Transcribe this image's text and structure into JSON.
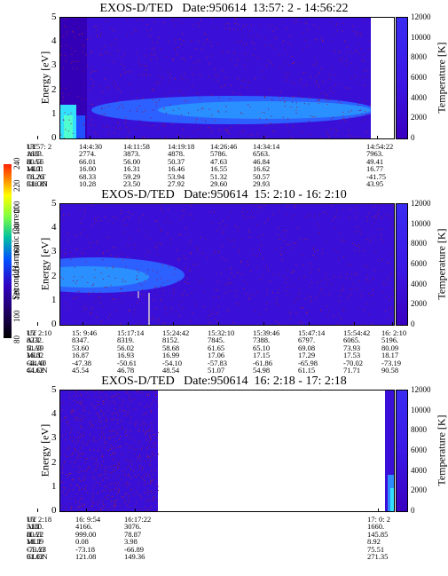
{
  "colorbar_left": {
    "label": "Second Harmonic Current",
    "ticks": [
      "80",
      "100",
      "120",
      "140",
      "160",
      "180",
      "200",
      "220",
      "240"
    ]
  },
  "panels": [
    {
      "title": "EXOS-D/TED   Date:950614  13:57: 2 - 14:56:22",
      "ylabel": "Energy [eV]",
      "rlabel": "Temperature [K]",
      "yticks": [
        "5",
        "4",
        "3",
        "2",
        "1",
        "0"
      ],
      "rticks": [
        "12000",
        "10000",
        "8000",
        "6000",
        "4000",
        "2000",
        "0"
      ],
      "orbit_labels": [
        "UT",
        "ALT",
        "ILAT",
        "MLT",
        "GLAT",
        "GLON"
      ],
      "orbit_cols": [
        [
          "13:57: 2",
          "1683.",
          "80.56",
          "14.01",
          "76.26",
          "316.83"
        ],
        [
          "14:4:30",
          "2774.",
          "66.01",
          "16.00",
          "68.33",
          "10.28"
        ],
        [
          "14:11:58",
          "3873.",
          "56.00",
          "16.31",
          "59.29",
          "23.50"
        ],
        [
          "14:19:18",
          "4878.",
          "50.37",
          "16.46",
          "53.94",
          "27.92"
        ],
        [
          "14:26:46",
          "5786.",
          "47.63",
          "16.55",
          "51.32",
          "29.60"
        ],
        [
          "14:34:14",
          "6563.",
          "46.84",
          "16.62",
          "50.57",
          "29.93"
        ],
        [
          "14:54:22",
          "7963.",
          "49.41",
          "16.77",
          "-41.75",
          "43.95"
        ]
      ]
    },
    {
      "title": "EXOS-D/TED   Date:950614  15: 2:10 - 16: 2:10",
      "ylabel": "Energy [eV]",
      "rlabel": "Temperature [K]",
      "yticks": [
        "5",
        "4",
        "3",
        "2",
        "1",
        "0"
      ],
      "rticks": [
        "12000",
        "10000",
        "8000",
        "6000",
        "4000",
        "2000",
        "0"
      ],
      "orbit_labels": [
        "UT",
        "ALT",
        "ILAT",
        "MLT",
        "GLAT",
        "GLON"
      ],
      "orbit_cols": [
        [
          "15: 2:10",
          "8232.",
          "51.39",
          "16.82",
          "-44.40",
          "44.62"
        ],
        [
          "15: 9:46",
          "8347.",
          "53.60",
          "16.87",
          "-47.38",
          "45.54"
        ],
        [
          "15:17:14",
          "8319.",
          "56.02",
          "16.93",
          "-50.61",
          "46.78"
        ],
        [
          "15:24:42",
          "8152.",
          "58.68",
          "16.99",
          "-54.10",
          "48.54"
        ],
        [
          "15:32:10",
          "7845.",
          "61.65",
          "17.06",
          "-57.83",
          "51.07"
        ],
        [
          "15:39:46",
          "7388.",
          "65.10",
          "17.15",
          "-61.86",
          "54.98"
        ],
        [
          "15:47:14",
          "6797.",
          "69.08",
          "17.29",
          "-65.98",
          "61.15"
        ],
        [
          "15:54:42",
          "6065.",
          "73.93",
          "17.53",
          "-70.02",
          "71.71"
        ],
        [
          "16: 2:10",
          "5196.",
          "80.09",
          "18.17",
          "-73.19",
          "90.58"
        ]
      ]
    },
    {
      "title": "EXOS-D/TED   Date:950614  16: 2:18 - 17: 2:18",
      "ylabel": "Energy [eV]",
      "rlabel": "Temperature [K]",
      "yticks": [
        "5",
        "4",
        "3",
        "2",
        "1",
        "0"
      ],
      "rticks": [
        "12000",
        "10000",
        "8000",
        "6000",
        "4000",
        "2000",
        "0"
      ],
      "orbit_labels": [
        "UT",
        "ALT",
        "ILAT",
        "MLT",
        "GLAT",
        "GLON"
      ],
      "orbit_cols": [
        [
          "16: 2:18",
          "5180.",
          "80.22",
          "18.19",
          "-73.23",
          "91.02"
        ],
        [
          "16: 9:54",
          "4166.",
          "999.00",
          "0.08",
          "-73.18",
          "121.08"
        ],
        [
          "16:17:22",
          "3076.",
          "78.87",
          "3.98",
          "-66.89",
          "149.36"
        ],
        [
          "17: 0: 2",
          "1660.",
          "145.85",
          "8.92",
          "75.51",
          "271.35"
        ]
      ]
    }
  ],
  "chart_data": [
    {
      "type": "heatmap",
      "title": "EXOS-D/TED   Date:950614  13:57: 2 - 14:56:22",
      "ylabel": "Energy [eV]",
      "ylim": [
        0,
        5
      ],
      "colorbar": {
        "label": "Temperature [K]",
        "range": [
          0,
          12000
        ]
      }
    },
    {
      "type": "heatmap",
      "title": "EXOS-D/TED   Date:950614  15: 2:10 - 16: 2:10",
      "ylabel": "Energy [eV]",
      "ylim": [
        0,
        5
      ],
      "colorbar": {
        "label": "Temperature [K]",
        "range": [
          0,
          12000
        ]
      }
    },
    {
      "type": "heatmap",
      "title": "EXOS-D/TED   Date:950614  16: 2:18 - 17: 2:18",
      "ylabel": "Energy [eV]",
      "ylim": [
        0,
        5
      ],
      "colorbar": {
        "label": "Temperature [K]",
        "range": [
          0,
          12000
        ]
      }
    }
  ]
}
